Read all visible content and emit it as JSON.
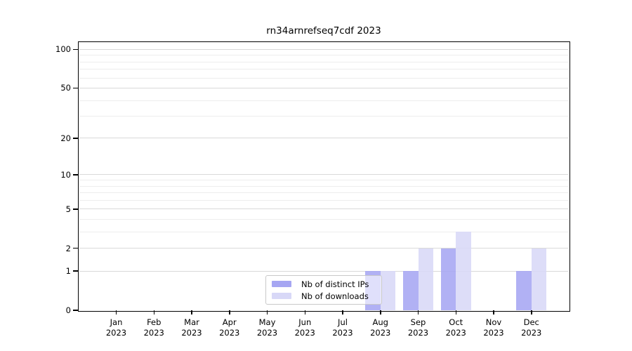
{
  "chart_data": {
    "type": "bar",
    "title": "rn34arnrefseq7cdf 2023",
    "year": "2023",
    "categories": [
      "Jan",
      "Feb",
      "Mar",
      "Apr",
      "May",
      "Jun",
      "Jul",
      "Aug",
      "Sep",
      "Oct",
      "Nov",
      "Dec"
    ],
    "series": [
      {
        "name": "Nb of distinct IPs",
        "color": "#a6a6f2",
        "values": [
          0,
          0,
          0,
          0,
          0,
          0,
          0,
          1,
          1,
          2,
          0,
          1
        ]
      },
      {
        "name": "Nb of downloads",
        "color": "#d8d8f7",
        "values": [
          0,
          0,
          0,
          0,
          0,
          0,
          0,
          1,
          2,
          3,
          0,
          2
        ]
      }
    ],
    "yscale": "log1p",
    "ylim": [
      0,
      117
    ],
    "y_major_ticks": [
      0,
      1,
      2,
      5,
      10,
      20,
      50,
      100
    ],
    "y_minor_gridlines": [
      3,
      4,
      6,
      7,
      8,
      9,
      30,
      40,
      60,
      70,
      80,
      90
    ],
    "grid": "horizontal",
    "legend_position": "bottom-center",
    "colors": {
      "major_grid": "#d9d9d9",
      "minor_grid": "#ededed",
      "axis": "#000000",
      "legend_border": "#c9c9c9"
    }
  }
}
